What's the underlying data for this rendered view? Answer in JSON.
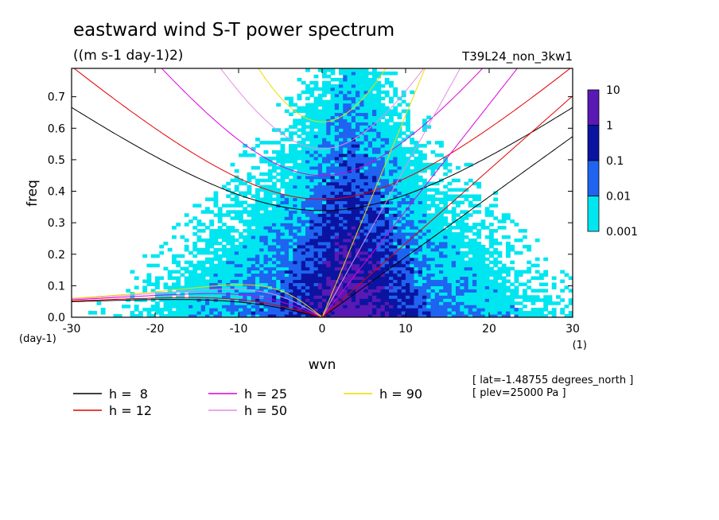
{
  "chart_data": {
    "type": "heatmap",
    "title": "eastward wind S-T power spectrum",
    "units": "((m s-1 day-1)2)",
    "run_label": "T39L24_non_3kw1",
    "xlabel": "wvn",
    "ylabel": "freq",
    "x_units": "(1)",
    "y_units": "(day-1)",
    "xlim": [
      -30,
      30
    ],
    "ylim": [
      0,
      0.79
    ],
    "x_ticks": [
      -30,
      -20,
      -10,
      0,
      10,
      20,
      30
    ],
    "x_tick_labels": [
      "-30",
      "-20",
      "-10",
      "0",
      "10",
      "20",
      "30"
    ],
    "y_ticks": [
      0,
      0.1,
      0.2,
      0.3,
      0.4,
      0.5,
      0.6,
      0.7
    ],
    "y_tick_labels": [
      "0.0",
      "0.1",
      "0.2",
      "0.3",
      "0.4",
      "0.5",
      "0.6",
      "0.7"
    ],
    "colorbar": {
      "levels": [
        "10",
        "1",
        "0.1",
        "0.01",
        "0.001"
      ],
      "colors": [
        "#5a19b4",
        "#0a14a0",
        "#1e64f0",
        "#00e6f0"
      ]
    },
    "dispersion_curves": [
      {
        "label": "h =  8",
        "h": 8,
        "color": "#000000"
      },
      {
        "label": "h = 12",
        "h": 12,
        "color": "#e60000"
      },
      {
        "label": "h = 25",
        "h": 25,
        "color": "#dc00dc"
      },
      {
        "label": "h = 50",
        "h": 50,
        "color": "#e68ce6"
      },
      {
        "label": "h = 90",
        "h": 90,
        "color": "#f0dc00"
      }
    ],
    "annotations": [
      "[ lat=-1.48755 degrees_north ]",
      "[ plev=25000 Pa ]"
    ]
  }
}
